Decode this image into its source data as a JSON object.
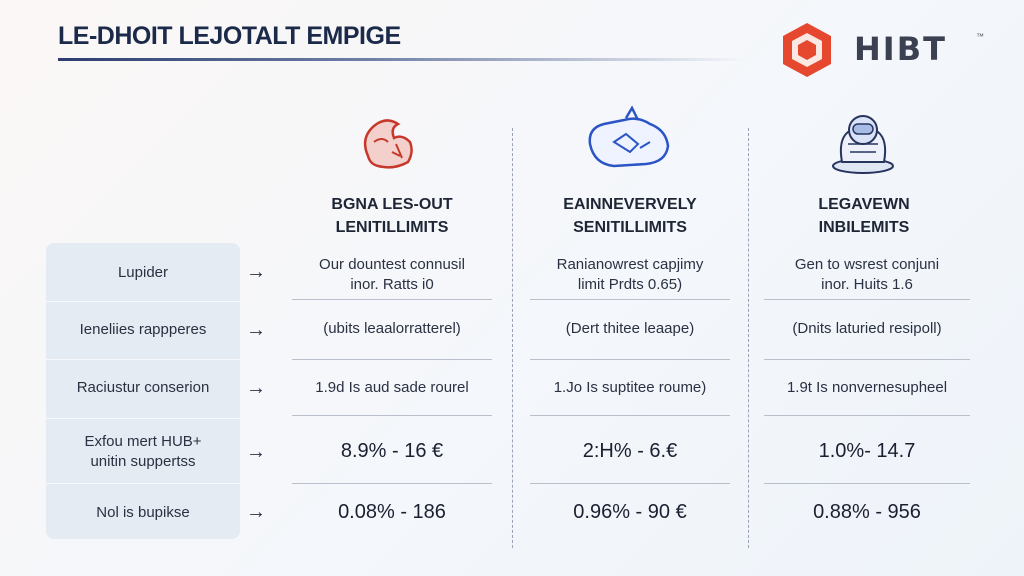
{
  "header": {
    "title": "LE-DHOIT LEJOTALT EMPIGE",
    "brand_name": "HIBT",
    "brand_mark": "™",
    "brand_color": "#e5482f"
  },
  "columns": [
    {
      "title_line1": "BGNA LES-OUT",
      "title_line2": "LENITILLIMITS",
      "icon": "dragon-icon"
    },
    {
      "title_line1": "EAINNEVERVELY",
      "title_line2": "SENITILLIMITS",
      "icon": "handshake-icon"
    },
    {
      "title_line1": "LEGAVEWN",
      "title_line2": "INBILEMITS",
      "icon": "astronaut-icon"
    }
  ],
  "rows": [
    {
      "label": "Lupider",
      "cells": [
        [
          "Our dountest connusil",
          "inor. Ratts i0"
        ],
        [
          "Ranianowrest capjimy",
          "limit Prdts 0.65)"
        ],
        [
          "Gen to wsrest conjuni",
          "inor. Huits 1.6"
        ]
      ]
    },
    {
      "label": "Ieneliies rappperes",
      "cells": [
        [
          "(ubits leaalorratterel)"
        ],
        [
          "(Dert thitee leaape)"
        ],
        [
          "(Dnits laturied resipoll)"
        ]
      ]
    },
    {
      "label": "Raciustur conserion",
      "cells": [
        [
          "1.9d Is aud sade rourel"
        ],
        [
          "1.Jo Is suptitee roume)"
        ],
        [
          "1.9t Is nonvernesupheel"
        ]
      ]
    },
    {
      "label_line1": "Exfou mert HUB+",
      "label_line2": "unitin suppertss",
      "cells": [
        [
          "8.9% - 16 €"
        ],
        [
          "2:H% - 6.€"
        ],
        [
          "1.0%- 14.7"
        ]
      ]
    },
    {
      "label": "Nol is bupikse",
      "cells": [
        [
          "0.08% - 186"
        ],
        [
          "0.96% - 90 €"
        ],
        [
          "0.88% - 956"
        ]
      ]
    }
  ],
  "arrow_glyph": "→"
}
